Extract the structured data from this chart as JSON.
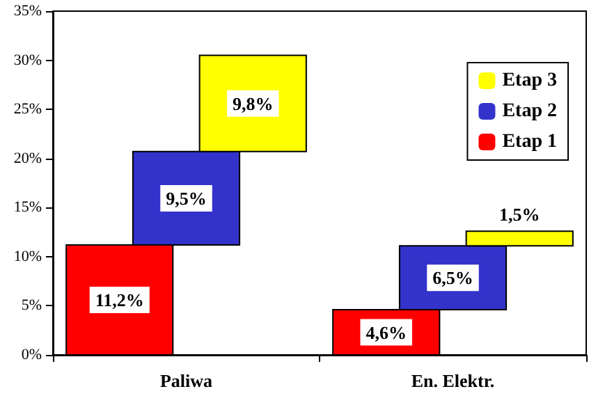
{
  "chart_data": {
    "type": "bar",
    "stacked": true,
    "categories": [
      "Paliwa",
      "En. Elektr."
    ],
    "series": [
      {
        "name": "Etap 1",
        "color": "#ff0000",
        "values": [
          11.2,
          4.6
        ],
        "value_labels": [
          "11,2%",
          "4,6%"
        ]
      },
      {
        "name": "Etap 2",
        "color": "#3333cc",
        "values": [
          9.5,
          6.5
        ],
        "value_labels": [
          "9,5%",
          "6,5%"
        ]
      },
      {
        "name": "Etap 3",
        "color": "#ffff00",
        "values": [
          9.8,
          1.5
        ],
        "value_labels": [
          "9,8%",
          "1,5%"
        ]
      }
    ],
    "ylim": [
      0,
      35
    ],
    "yticks": [
      {
        "value": 0,
        "label": "0%"
      },
      {
        "value": 5,
        "label": "5%"
      },
      {
        "value": 10,
        "label": "10%"
      },
      {
        "value": 15,
        "label": "15%"
      },
      {
        "value": 20,
        "label": "20%"
      },
      {
        "value": 25,
        "label": "25%"
      },
      {
        "value": 30,
        "label": "30%"
      },
      {
        "value": 35,
        "label": "35%"
      }
    ],
    "grid": false,
    "legend": "top right"
  }
}
